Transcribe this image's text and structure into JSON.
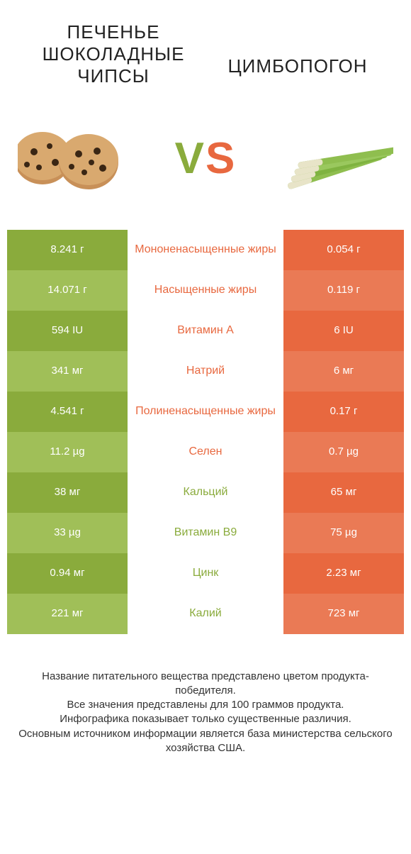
{
  "titles": {
    "left": "ПЕЧЕНЬЕ ШОКОЛАДНЫЕ ЧИПСЫ",
    "right": "ЦИМБОПОГОН"
  },
  "vs": {
    "v": "V",
    "s": "S"
  },
  "colors": {
    "left_dark": "#8aab3c",
    "left_light": "#a0bf58",
    "right_dark": "#e8683f",
    "right_light": "#ea7a55",
    "mid_left": "#e8683f",
    "mid_right": "#8aab3c"
  },
  "rows": [
    {
      "left": "8.241 г",
      "label": "Мононенасыщенные жиры",
      "right": "0.054 г",
      "winner": "left"
    },
    {
      "left": "14.071 г",
      "label": "Насыщенные жиры",
      "right": "0.119 г",
      "winner": "left"
    },
    {
      "left": "594 IU",
      "label": "Витамин A",
      "right": "6 IU",
      "winner": "left"
    },
    {
      "left": "341 мг",
      "label": "Натрий",
      "right": "6 мг",
      "winner": "left"
    },
    {
      "left": "4.541 г",
      "label": "Полиненасыщенные жиры",
      "right": "0.17 г",
      "winner": "left"
    },
    {
      "left": "11.2 µg",
      "label": "Селен",
      "right": "0.7 µg",
      "winner": "left"
    },
    {
      "left": "38 мг",
      "label": "Кальций",
      "right": "65 мг",
      "winner": "right"
    },
    {
      "left": "33 µg",
      "label": "Витамин B9",
      "right": "75 µg",
      "winner": "right"
    },
    {
      "left": "0.94 мг",
      "label": "Цинк",
      "right": "2.23 мг",
      "winner": "right"
    },
    {
      "left": "221 мг",
      "label": "Калий",
      "right": "723 мг",
      "winner": "right"
    }
  ],
  "footer": {
    "l1": "Название питательного вещества представлено цветом продукта-победителя.",
    "l2": "Все значения представлены для 100 граммов продукта.",
    "l3": "Инфографика показывает только существенные различия.",
    "l4": "Основным источником информации является база министерства сельского хозяйства США."
  }
}
